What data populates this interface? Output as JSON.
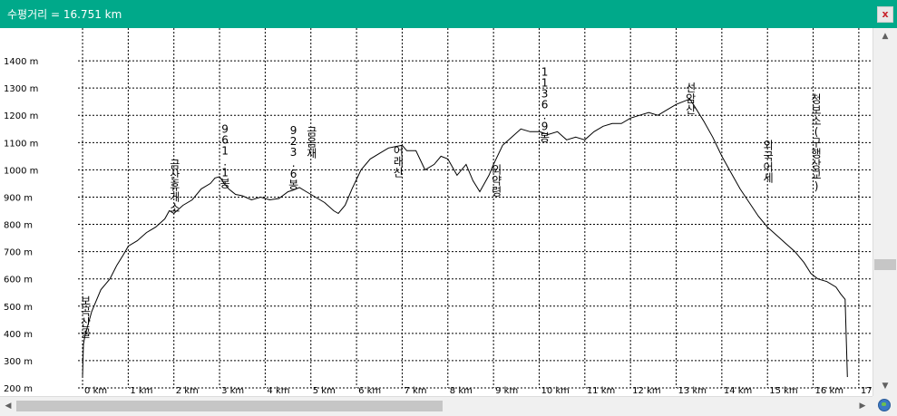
{
  "window": {
    "title": "수평거리 = 16.751 km",
    "close_label": "x"
  },
  "colors": {
    "titlebar": "#00a98a",
    "grid": "#000000",
    "line": "#000000"
  },
  "chart_data": {
    "type": "line",
    "title": "",
    "xlabel": "",
    "ylabel": "",
    "x_unit": "km",
    "y_unit": "m",
    "xlim": [
      -0.1,
      17.3
    ],
    "ylim": [
      200,
      1520
    ],
    "grid": true,
    "x_ticks": [
      0,
      1,
      2,
      3,
      4,
      5,
      6,
      7,
      8,
      9,
      10,
      11,
      12,
      13,
      14,
      15,
      16,
      17
    ],
    "x_tick_labels": [
      "0 km",
      "1 km",
      "2 km",
      "3 km",
      "4 km",
      "5 km",
      "6 km",
      "7 km",
      "8 km",
      "9 km",
      "10 km",
      "11 km",
      "12 km",
      "13 km",
      "14 km",
      "15 km",
      "16 km",
      "17 km"
    ],
    "y_ticks": [
      200,
      300,
      400,
      500,
      600,
      700,
      800,
      900,
      1000,
      1100,
      1200,
      1300,
      1400
    ],
    "y_tick_labels": [
      "200 m",
      "300 m",
      "400 m",
      "500 m",
      "600 m",
      "700 m",
      "800 m",
      "900 m",
      "1000 m",
      "1100 m",
      "1200 m",
      "1300 m",
      "1400 m"
    ],
    "series": [
      {
        "x": [
          0,
          0.02,
          0.05,
          0.1,
          0.2,
          0.3,
          0.4,
          0.5,
          0.6,
          0.75,
          0.9,
          1.0,
          1.2,
          1.4,
          1.6,
          1.8,
          1.9,
          2.0,
          2.2,
          2.4,
          2.6,
          2.8,
          2.9,
          3.0,
          3.1,
          3.2,
          3.35,
          3.5,
          3.7,
          3.9,
          4.1,
          4.3,
          4.5,
          4.6,
          4.75,
          4.9,
          5.1,
          5.3,
          5.5,
          5.6,
          5.75,
          5.9,
          6.1,
          6.3,
          6.5,
          6.7,
          6.85,
          7.0,
          7.1,
          7.3,
          7.5,
          7.7,
          7.85,
          8.0,
          8.2,
          8.4,
          8.55,
          8.7,
          8.8,
          8.9,
          9.0,
          9.2,
          9.4,
          9.6,
          9.8,
          10.0,
          10.2,
          10.4,
          10.6,
          10.8,
          11.0,
          11.2,
          11.4,
          11.6,
          11.8,
          12.0,
          12.2,
          12.4,
          12.6,
          12.8,
          13.0,
          13.15,
          13.3,
          13.45,
          13.6,
          13.8,
          14.0,
          14.2,
          14.4,
          14.6,
          14.8,
          15.0,
          15.2,
          15.4,
          15.6,
          15.8,
          15.95,
          16.1,
          16.3,
          16.5,
          16.6,
          16.7,
          16.75
        ],
        "y": [
          240,
          360,
          390,
          420,
          480,
          520,
          560,
          580,
          600,
          650,
          690,
          720,
          740,
          770,
          790,
          820,
          850,
          840,
          870,
          890,
          930,
          950,
          970,
          975,
          950,
          930,
          910,
          905,
          890,
          900,
          890,
          895,
          920,
          925,
          935,
          920,
          900,
          880,
          850,
          840,
          870,
          930,
          1000,
          1040,
          1060,
          1080,
          1085,
          1090,
          1070,
          1070,
          1000,
          1020,
          1050,
          1040,
          980,
          1020,
          960,
          920,
          950,
          980,
          1020,
          1090,
          1120,
          1150,
          1140,
          1140,
          1130,
          1140,
          1110,
          1120,
          1110,
          1140,
          1160,
          1170,
          1170,
          1190,
          1200,
          1210,
          1200,
          1220,
          1240,
          1250,
          1260,
          1220,
          1180,
          1120,
          1050,
          990,
          930,
          880,
          830,
          790,
          760,
          730,
          700,
          660,
          620,
          600,
          590,
          570,
          545,
          525,
          240
        ]
      }
    ],
    "annotations": [
      {
        "x": 0.05,
        "y": 380,
        "text": "보곡산골"
      },
      {
        "x": 2.0,
        "y": 840,
        "text": "금산휴게소"
      },
      {
        "x": 3.1,
        "y": 930,
        "text": "961.1봉"
      },
      {
        "x": 4.6,
        "y": 925,
        "text": "923.6봉"
      },
      {
        "x": 5.0,
        "y": 1040,
        "text": "금음재"
      },
      {
        "x": 6.9,
        "y": 970,
        "text": "어래산"
      },
      {
        "x": 9.05,
        "y": 900,
        "text": "외약령"
      },
      {
        "x": 10.1,
        "y": 1100,
        "text": "1136.9봉"
      },
      {
        "x": 13.3,
        "y": 1200,
        "text": "선암산"
      },
      {
        "x": 15.0,
        "y": 950,
        "text": "외국어세"
      },
      {
        "x": 16.05,
        "y": 920,
        "text": "청보소(구행상교)"
      }
    ]
  }
}
